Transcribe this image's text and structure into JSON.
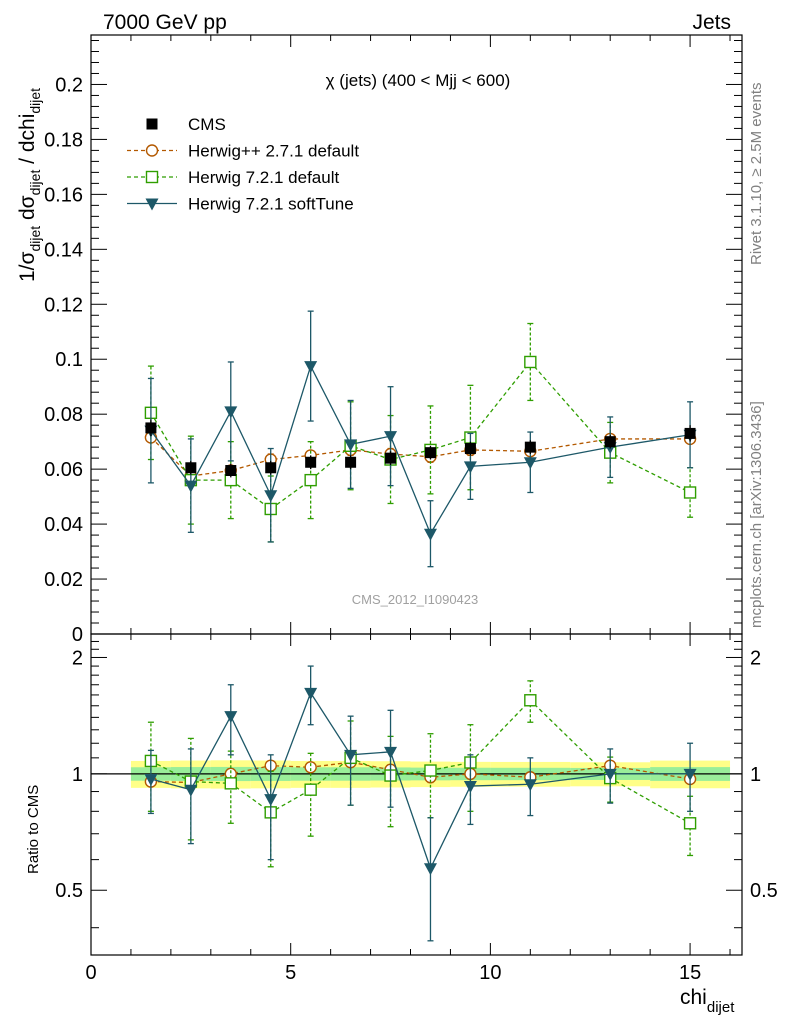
{
  "header": {
    "left": "7000 GeV pp",
    "right": "Jets"
  },
  "side_text": {
    "rivet": "Rivet 3.1.10, ≥ 2.5M events",
    "mcplots": "mcplots.cern.ch [arXiv:1306.3436]"
  },
  "chart_data": {
    "type": "scatter",
    "title": "χ (jets) (400 < Mjj <  600)",
    "watermark": "CMS_2012_I1090423",
    "xlabel": "chi_dijet",
    "ylabel": "1/σ_dijet dσ_dijet / dchi_dijet",
    "ratio_ylabel": "Ratio to CMS",
    "xlim": [
      0,
      16.3
    ],
    "ylim": [
      0,
      0.218
    ],
    "ratio_ylim": [
      0.34,
      2.3
    ],
    "x_ticks": [
      0,
      5,
      10,
      15
    ],
    "y_ticks": [
      0,
      0.02,
      0.04,
      0.06,
      0.08,
      0.1,
      0.12,
      0.14,
      0.16,
      0.18,
      0.2
    ],
    "y_tick_labels": [
      "0",
      "0.02",
      "0.04",
      "0.06",
      "0.08",
      "0.1",
      "0.12",
      "0.14",
      "0.16",
      "0.18",
      "0.2"
    ],
    "ratio_ticks": [
      0.5,
      1,
      2
    ],
    "ratio_tick_labels": [
      "0.5",
      "1",
      "2"
    ],
    "x": [
      1.5,
      2.5,
      3.5,
      4.5,
      5.5,
      6.5,
      7.5,
      8.5,
      9.5,
      11,
      13,
      15
    ],
    "x_edges": [
      1,
      2,
      3,
      4,
      5,
      6,
      7,
      8,
      9,
      10,
      12,
      14,
      16
    ],
    "series": [
      {
        "name": "CMS",
        "style": "data",
        "color": "#000000",
        "values": [
          0.075,
          0.0605,
          0.0595,
          0.0605,
          0.0625,
          0.0625,
          0.064,
          0.066,
          0.0675,
          0.068,
          0.07,
          0.073
        ],
        "errors": [
          0.003,
          0.0025,
          0.0025,
          0.0025,
          0.0025,
          0.0025,
          0.0025,
          0.0025,
          0.0025,
          0.0025,
          0.0025,
          0.003
        ]
      },
      {
        "name": "Herwig++ 2.7.1 default",
        "style": "circle",
        "color": "#b35900",
        "values": [
          0.0715,
          0.0575,
          0.0595,
          0.0635,
          0.065,
          0.067,
          0.0655,
          0.0645,
          0.067,
          0.0665,
          0.071,
          0.071
        ],
        "errors": [
          0.0015,
          0.0015,
          0.0015,
          0.002,
          0.0015,
          0.002,
          0.002,
          0.002,
          0.002,
          0.0015,
          0.0015,
          0.0015
        ],
        "ratio": [
          0.955,
          0.95,
          1.0,
          1.05,
          1.04,
          1.072,
          1.025,
          0.98,
          1.0,
          0.98,
          1.05,
          0.97
        ],
        "ratio_errors": [
          0.02,
          0.02,
          0.03,
          0.03,
          0.025,
          0.03,
          0.03,
          0.03,
          0.03,
          0.02,
          0.02,
          0.02
        ]
      },
      {
        "name": "Herwig 7.2.1 default",
        "style": "square",
        "color": "#2f9e00",
        "values": [
          0.0805,
          0.056,
          0.056,
          0.0455,
          0.056,
          0.0685,
          0.0635,
          0.067,
          0.0715,
          0.099,
          0.066,
          0.0515
        ],
        "errors": [
          0.017,
          0.016,
          0.014,
          0.012,
          0.014,
          0.016,
          0.016,
          0.016,
          0.019,
          0.014,
          0.011,
          0.009
        ],
        "ratio": [
          1.08,
          0.955,
          0.945,
          0.795,
          0.91,
          1.1,
          0.99,
          1.02,
          1.07,
          1.55,
          0.975,
          0.745
        ],
        "ratio_errors": [
          0.28,
          0.28,
          0.2,
          0.22,
          0.22,
          0.27,
          0.26,
          0.25,
          0.27,
          0.19,
          0.13,
          0.13
        ]
      },
      {
        "name": "Herwig 7.2.1 softTune",
        "style": "triangle",
        "color": "#1d5868",
        "values": [
          0.074,
          0.054,
          0.081,
          0.0505,
          0.0975,
          0.069,
          0.072,
          0.0365,
          0.061,
          0.0625,
          0.068,
          0.0725
        ],
        "errors": [
          0.019,
          0.017,
          0.018,
          0.017,
          0.02,
          0.016,
          0.018,
          0.012,
          0.012,
          0.011,
          0.011,
          0.012
        ],
        "ratio": [
          0.97,
          0.91,
          1.41,
          0.86,
          1.62,
          1.12,
          1.14,
          0.57,
          0.93,
          0.94,
          1.0,
          1.0
        ],
        "ratio_errors": [
          0.18,
          0.25,
          0.29,
          0.26,
          0.28,
          0.29,
          0.32,
          0.2,
          0.19,
          0.16,
          0.16,
          0.2
        ]
      }
    ],
    "legend_position": "top-left"
  }
}
